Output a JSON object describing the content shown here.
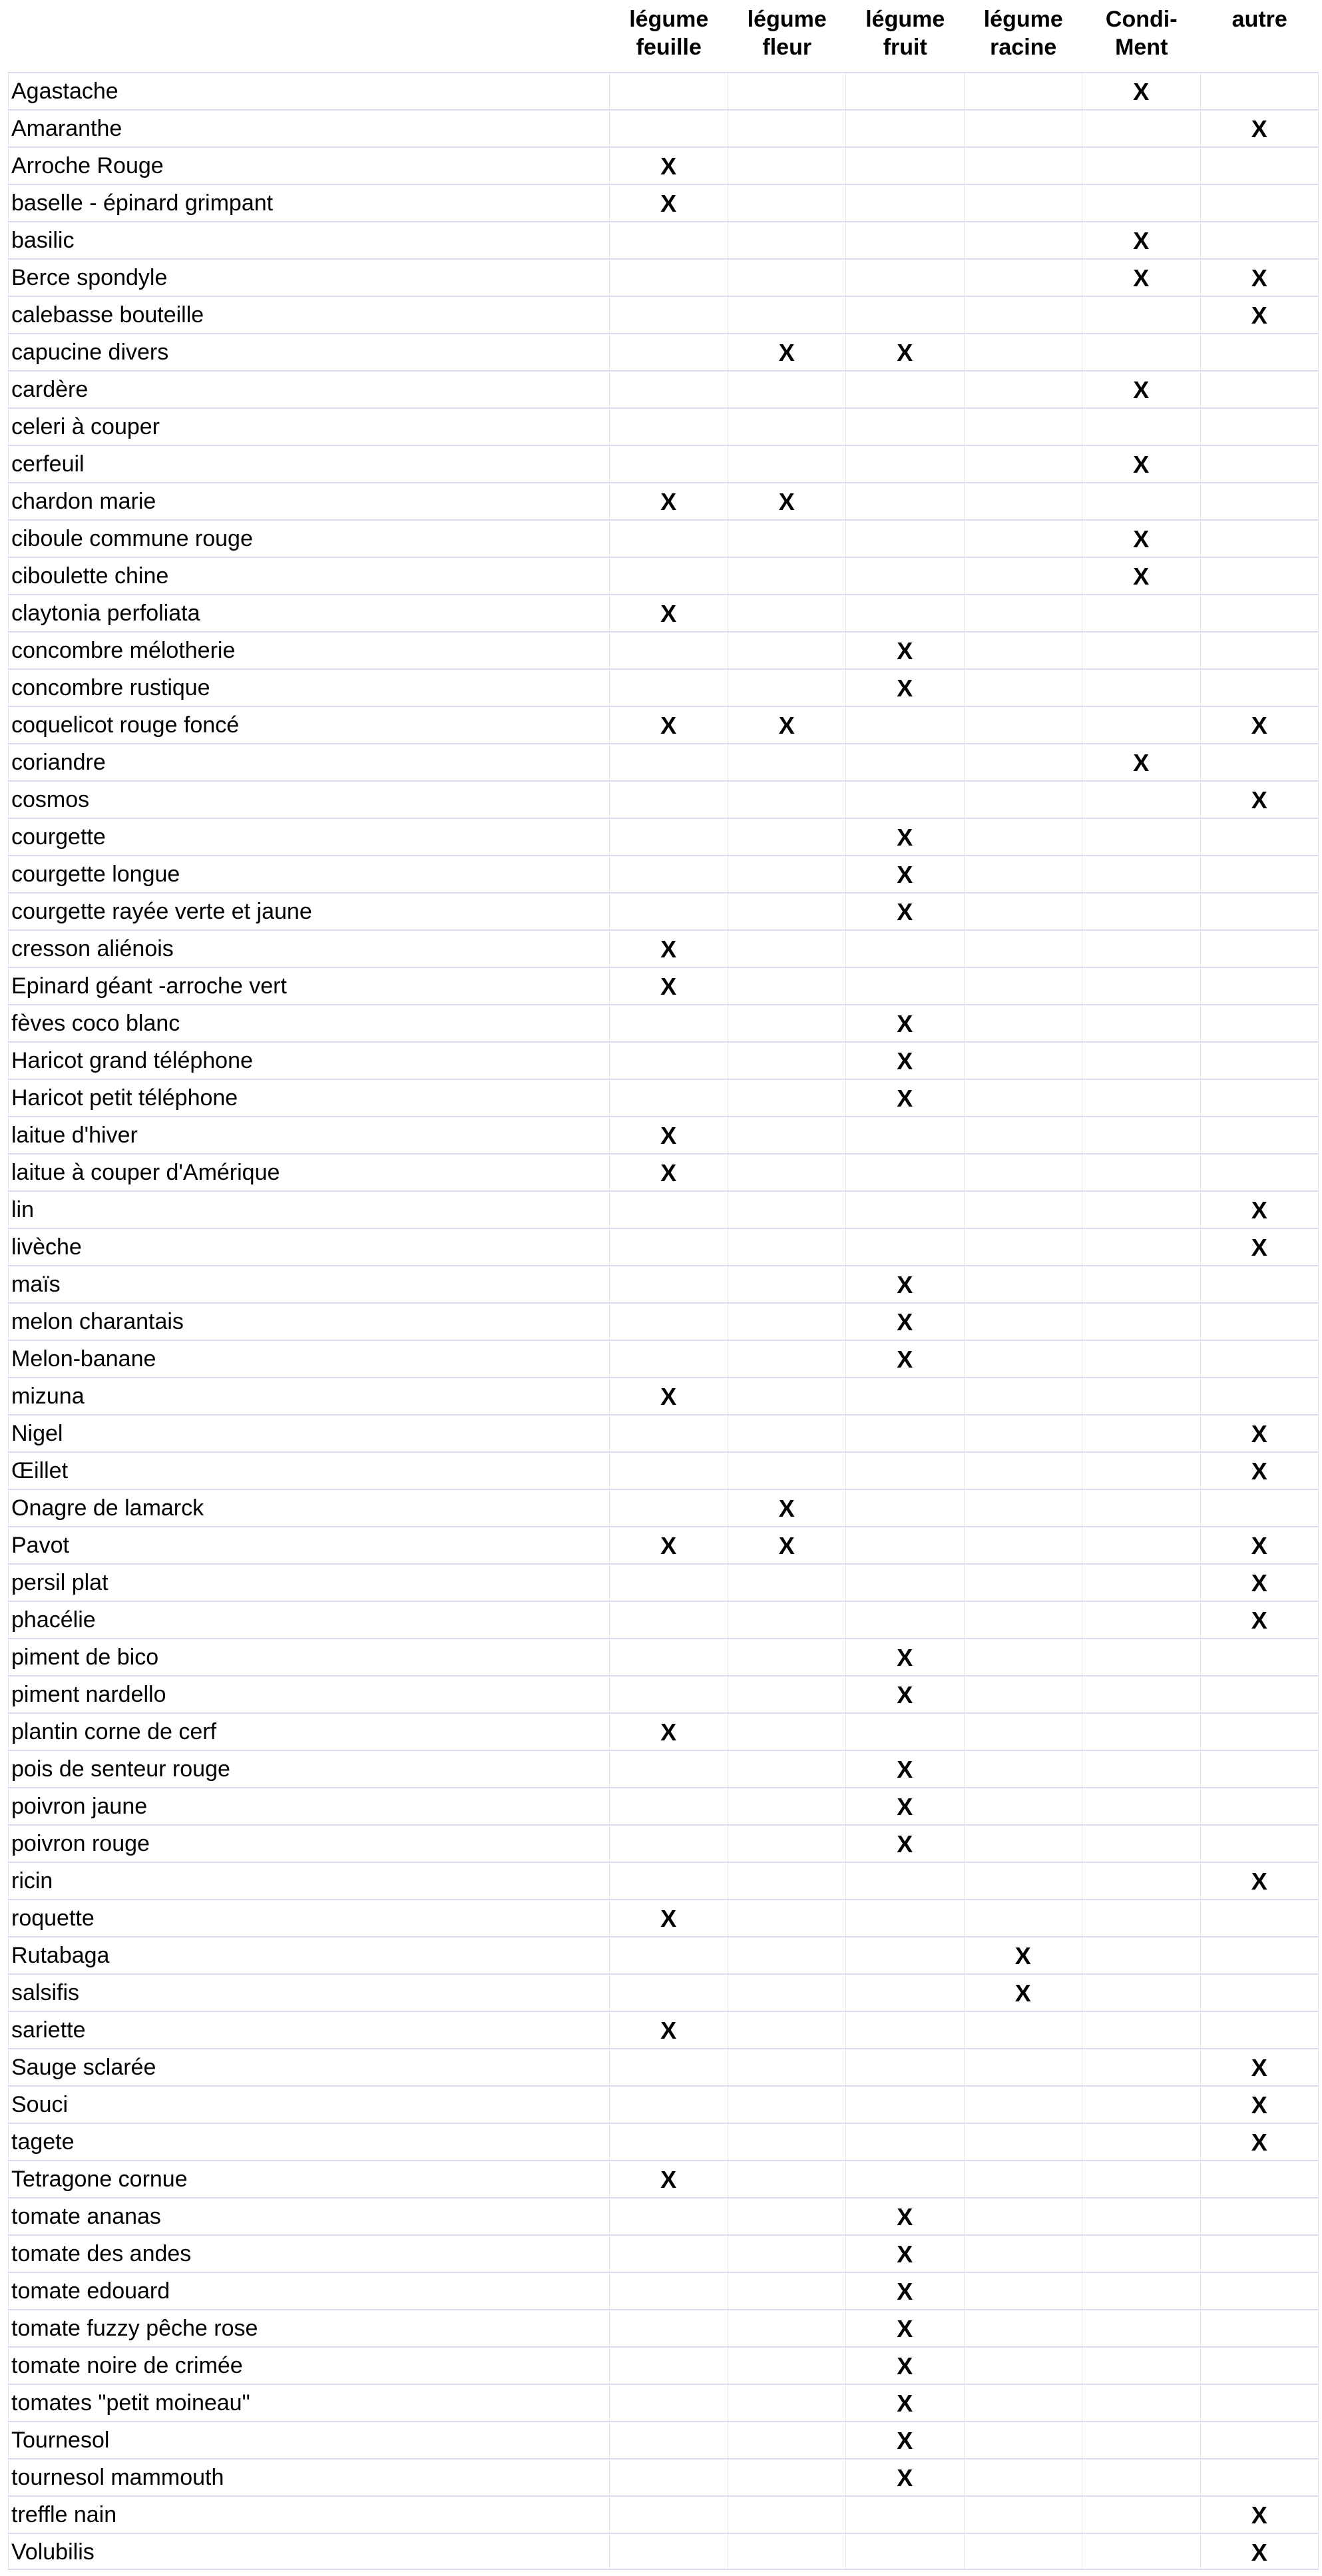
{
  "headers": [
    "légume\nfeuille",
    "légume\nfleur",
    "légume\nfruit",
    "légume\nracine",
    "Condi-\nMent",
    "autre"
  ],
  "rows": [
    {
      "name": "Agastache",
      "marks": [
        "",
        "",
        "",
        "",
        "X",
        ""
      ]
    },
    {
      "name": "Amaranthe",
      "marks": [
        "",
        "",
        "",
        "",
        "",
        "X"
      ]
    },
    {
      "name": "Arroche Rouge",
      "marks": [
        "X",
        "",
        "",
        "",
        "",
        ""
      ]
    },
    {
      "name": "baselle - épinard grimpant",
      "marks": [
        "X",
        "",
        "",
        "",
        "",
        ""
      ]
    },
    {
      "name": "basilic",
      "marks": [
        "",
        "",
        "",
        "",
        "X",
        ""
      ]
    },
    {
      "name": "Berce spondyle",
      "marks": [
        "",
        "",
        "",
        "",
        "X",
        "X"
      ]
    },
    {
      "name": "calebasse bouteille",
      "marks": [
        "",
        "",
        "",
        "",
        "",
        "X"
      ]
    },
    {
      "name": "capucine divers",
      "marks": [
        "",
        "X",
        "X",
        "",
        "",
        ""
      ]
    },
    {
      "name": "cardère",
      "marks": [
        "",
        "",
        "",
        "",
        "X",
        ""
      ]
    },
    {
      "name": "celeri à couper",
      "marks": [
        "",
        "",
        "",
        "",
        "",
        ""
      ]
    },
    {
      "name": "cerfeuil",
      "marks": [
        "",
        "",
        "",
        "",
        "X",
        ""
      ]
    },
    {
      "name": "chardon marie",
      "marks": [
        "X",
        "X",
        "",
        "",
        "",
        ""
      ]
    },
    {
      "name": "ciboule commune rouge",
      "marks": [
        "",
        "",
        "",
        "",
        "X",
        ""
      ]
    },
    {
      "name": "ciboulette chine",
      "marks": [
        "",
        "",
        "",
        "",
        "X",
        ""
      ]
    },
    {
      "name": "claytonia perfoliata",
      "marks": [
        "X",
        "",
        "",
        "",
        "",
        ""
      ]
    },
    {
      "name": "concombre mélotherie",
      "marks": [
        "",
        "",
        "X",
        "",
        "",
        ""
      ]
    },
    {
      "name": "concombre rustique",
      "marks": [
        "",
        "",
        "X",
        "",
        "",
        ""
      ]
    },
    {
      "name": "coquelicot rouge foncé",
      "marks": [
        "X",
        "X",
        "",
        "",
        "",
        "X"
      ]
    },
    {
      "name": "coriandre",
      "marks": [
        "",
        "",
        "",
        "",
        "X",
        ""
      ]
    },
    {
      "name": "cosmos",
      "marks": [
        "",
        "",
        "",
        "",
        "",
        "X"
      ]
    },
    {
      "name": "courgette",
      "marks": [
        "",
        "",
        "X",
        "",
        "",
        ""
      ]
    },
    {
      "name": "courgette longue",
      "marks": [
        "",
        "",
        "X",
        "",
        "",
        ""
      ]
    },
    {
      "name": "courgette rayée verte et jaune",
      "marks": [
        "",
        "",
        "X",
        "",
        "",
        ""
      ]
    },
    {
      "name": "cresson aliénois",
      "marks": [
        "X",
        "",
        "",
        "",
        "",
        ""
      ]
    },
    {
      "name": "Epinard géant -arroche vert",
      "marks": [
        "X",
        "",
        "",
        "",
        "",
        ""
      ]
    },
    {
      "name": "fèves coco blanc",
      "marks": [
        "",
        "",
        "X",
        "",
        "",
        ""
      ]
    },
    {
      "name": "Haricot grand téléphone",
      "marks": [
        "",
        "",
        "X",
        "",
        "",
        ""
      ]
    },
    {
      "name": "Haricot petit téléphone",
      "marks": [
        "",
        "",
        "X",
        "",
        "",
        ""
      ]
    },
    {
      "name": "laitue d'hiver",
      "marks": [
        "X",
        "",
        "",
        "",
        "",
        ""
      ]
    },
    {
      "name": "laitue à couper d'Amérique",
      "marks": [
        "X",
        "",
        "",
        "",
        "",
        ""
      ]
    },
    {
      "name": "lin",
      "marks": [
        "",
        "",
        "",
        "",
        "",
        "X"
      ]
    },
    {
      "name": "livèche",
      "marks": [
        "",
        "",
        "",
        "",
        "",
        "X"
      ]
    },
    {
      "name": "maïs",
      "marks": [
        "",
        "",
        "X",
        "",
        "",
        ""
      ]
    },
    {
      "name": "melon charantais",
      "marks": [
        "",
        "",
        "X",
        "",
        "",
        ""
      ]
    },
    {
      "name": "Melon-banane",
      "marks": [
        "",
        "",
        "X",
        "",
        "",
        ""
      ]
    },
    {
      "name": "mizuna",
      "marks": [
        "X",
        "",
        "",
        "",
        "",
        ""
      ]
    },
    {
      "name": "Nigel",
      "marks": [
        "",
        "",
        "",
        "",
        "",
        "X"
      ]
    },
    {
      "name": "Œillet",
      "marks": [
        "",
        "",
        "",
        "",
        "",
        "X"
      ]
    },
    {
      "name": "Onagre de lamarck",
      "marks": [
        "",
        "X",
        "",
        "",
        "",
        ""
      ]
    },
    {
      "name": "Pavot",
      "marks": [
        "X",
        "X",
        "",
        "",
        "",
        "X"
      ]
    },
    {
      "name": "persil plat",
      "marks": [
        "",
        "",
        "",
        "",
        "",
        "X"
      ]
    },
    {
      "name": "phacélie",
      "marks": [
        "",
        "",
        "",
        "",
        "",
        "X"
      ]
    },
    {
      "name": "piment de bico",
      "marks": [
        "",
        "",
        "X",
        "",
        "",
        ""
      ]
    },
    {
      "name": "piment nardello",
      "marks": [
        "",
        "",
        "X",
        "",
        "",
        ""
      ]
    },
    {
      "name": "plantin corne de cerf",
      "marks": [
        "X",
        "",
        "",
        "",
        "",
        ""
      ]
    },
    {
      "name": "pois de senteur rouge",
      "marks": [
        "",
        "",
        "X",
        "",
        "",
        ""
      ]
    },
    {
      "name": "poivron jaune",
      "marks": [
        "",
        "",
        "X",
        "",
        "",
        ""
      ]
    },
    {
      "name": "poivron rouge",
      "marks": [
        "",
        "",
        "X",
        "",
        "",
        ""
      ]
    },
    {
      "name": "ricin",
      "marks": [
        "",
        "",
        "",
        "",
        "",
        "X"
      ]
    },
    {
      "name": "roquette",
      "marks": [
        "X",
        "",
        "",
        "",
        "",
        ""
      ]
    },
    {
      "name": "Rutabaga",
      "marks": [
        "",
        "",
        "",
        "X",
        "",
        ""
      ]
    },
    {
      "name": "salsifis",
      "marks": [
        "",
        "",
        "",
        "X",
        "",
        ""
      ]
    },
    {
      "name": "sariette",
      "marks": [
        "X",
        "",
        "",
        "",
        "",
        ""
      ]
    },
    {
      "name": "Sauge sclarée",
      "marks": [
        "",
        "",
        "",
        "",
        "",
        "X"
      ]
    },
    {
      "name": "Souci",
      "marks": [
        "",
        "",
        "",
        "",
        "",
        "X"
      ]
    },
    {
      "name": "tagete",
      "marks": [
        "",
        "",
        "",
        "",
        "",
        "X"
      ]
    },
    {
      "name": "Tetragone cornue",
      "marks": [
        "X",
        "",
        "",
        "",
        "",
        ""
      ]
    },
    {
      "name": "tomate ananas",
      "marks": [
        "",
        "",
        "X",
        "",
        "",
        ""
      ]
    },
    {
      "name": "tomate des andes",
      "marks": [
        "",
        "",
        "X",
        "",
        "",
        ""
      ]
    },
    {
      "name": "tomate edouard",
      "marks": [
        "",
        "",
        "X",
        "",
        "",
        ""
      ]
    },
    {
      "name": "tomate fuzzy pêche rose",
      "marks": [
        "",
        "",
        "X",
        "",
        "",
        ""
      ]
    },
    {
      "name": "tomate noire de crimée",
      "marks": [
        "",
        "",
        "X",
        "",
        "",
        ""
      ]
    },
    {
      "name": "tomates \"petit moineau\"",
      "marks": [
        "",
        "",
        "X",
        "",
        "",
        ""
      ]
    },
    {
      "name": "Tournesol",
      "marks": [
        "",
        "",
        "X",
        "",
        "",
        ""
      ]
    },
    {
      "name": "tournesol mammouth",
      "marks": [
        "",
        "",
        "X",
        "",
        "",
        ""
      ]
    },
    {
      "name": "treffle nain",
      "marks": [
        "",
        "",
        "",
        "",
        "",
        "X"
      ]
    },
    {
      "name": "Volubilis",
      "marks": [
        "",
        "",
        "",
        "",
        "",
        "X"
      ]
    }
  ]
}
